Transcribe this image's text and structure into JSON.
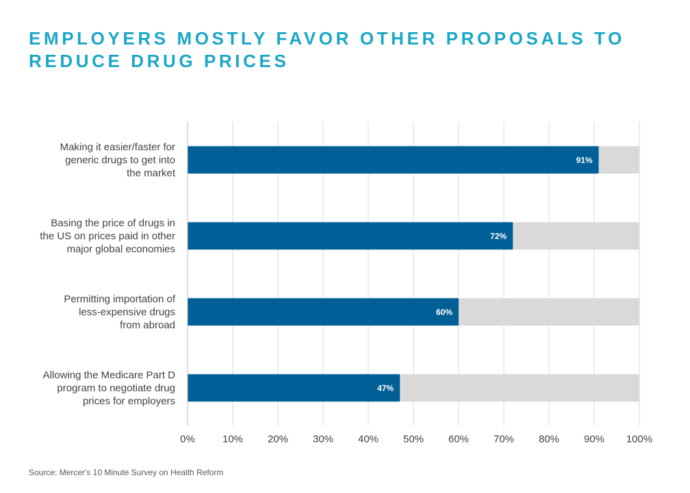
{
  "title": "EMPLOYERS MOSTLY FAVOR OTHER PROPOSALS TO REDUCE DRUG PRICES",
  "source": "Source: Mercer's 10 Minute Survey on Health Reform",
  "colors": {
    "title": "#1aa7c6",
    "bar": "#005f97",
    "background_bar": "#d9d9d9",
    "grid": "#d9d9d9",
    "label": "#404040"
  },
  "chart_data": {
    "type": "bar",
    "orientation": "horizontal",
    "categories": [
      [
        "Making it easier/faster for",
        "generic drugs to get into",
        "the market"
      ],
      [
        "Basing the price of drugs in",
        "the US on prices paid in other",
        "major global economies"
      ],
      [
        "Permitting importation of",
        "less-expensive drugs",
        "from abroad"
      ],
      [
        "Allowing the Medicare Part D",
        "program to negotiate drug",
        "prices for employers"
      ]
    ],
    "values": [
      91,
      72,
      60,
      47
    ],
    "data_labels": [
      "91%",
      "72%",
      "60%",
      "47%"
    ],
    "xlim": [
      0,
      100
    ],
    "xticks": [
      "0%",
      "10%",
      "20%",
      "30%",
      "40%",
      "50%",
      "60%",
      "70%",
      "80%",
      "90%",
      "100%"
    ],
    "grid": true,
    "stacked_remainder_to": 100
  }
}
